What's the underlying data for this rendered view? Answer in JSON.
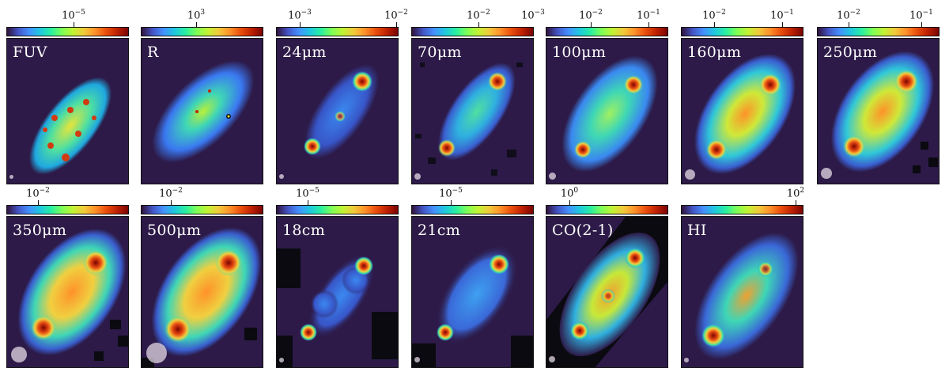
{
  "colormap": "turbo",
  "colors": {
    "background": "#2d1a48",
    "mask": "#000000",
    "label": "#ffffff",
    "beam": "#e6dce6"
  },
  "panels": [
    {
      "name": "fuv",
      "band": "FUV",
      "ticks": [
        "10^-5"
      ],
      "row": 1,
      "beam": "small"
    },
    {
      "name": "r",
      "band": "R",
      "ticks": [
        "10^3"
      ],
      "row": 1,
      "beam": "none"
    },
    {
      "name": "24um",
      "band": "24μm",
      "ticks": [
        "10^-3",
        "10^-2"
      ],
      "row": 1,
      "beam": "small"
    },
    {
      "name": "70um",
      "band": "70μm",
      "ticks": [
        "10^-2",
        "10^-3"
      ],
      "row": 1,
      "beam": "small"
    },
    {
      "name": "100um",
      "band": "100μm",
      "ticks": [
        "10^-2",
        "10^-1"
      ],
      "row": 1,
      "beam": "small"
    },
    {
      "name": "160um",
      "band": "160μm",
      "ticks": [
        "10^-2",
        "10^-1"
      ],
      "row": 1,
      "beam": "medium"
    },
    {
      "name": "250um",
      "band": "250μm",
      "ticks": [
        "10^-2",
        "10^-1"
      ],
      "row": 1,
      "beam": "medium"
    },
    {
      "name": "350um",
      "band": "350μm",
      "ticks": [
        "10^-2"
      ],
      "row": 2,
      "beam": "large"
    },
    {
      "name": "500um",
      "band": "500μm",
      "ticks": [
        "10^-2"
      ],
      "row": 2,
      "beam": "xlarge"
    },
    {
      "name": "18cm",
      "band": "18cm",
      "ticks": [
        "10^-5"
      ],
      "row": 2,
      "beam": "small"
    },
    {
      "name": "21cm",
      "band": "21cm",
      "ticks": [
        "10^-5"
      ],
      "row": 2,
      "beam": "small"
    },
    {
      "name": "co21",
      "band": "CO(2-1)",
      "ticks": [
        "10^0"
      ],
      "row": 2,
      "beam": "small"
    },
    {
      "name": "hi",
      "band": "HI",
      "ticks": [
        "10^2"
      ],
      "row": 2,
      "beam": "small"
    }
  ]
}
